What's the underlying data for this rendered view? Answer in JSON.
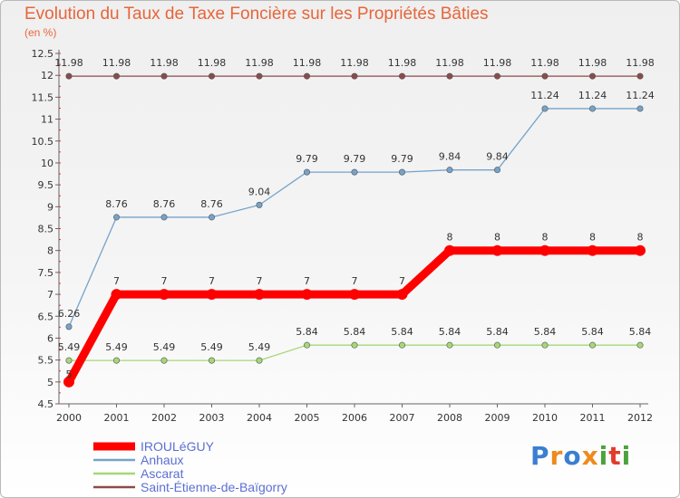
{
  "header": {
    "title": "Evolution du Taux de Taxe Foncière sur les Propriétés Bâties",
    "unit": "(en %)"
  },
  "brand": {
    "name": "Proxiti",
    "letters": [
      "P",
      "r",
      "o",
      "x",
      "i",
      "t",
      "i"
    ],
    "letter_colors": [
      "#3a7fd0",
      "#f08a1c",
      "#3a7fd0",
      "#f08a1c",
      "#4aa33c",
      "#e23b2c",
      "#4aa33c"
    ]
  },
  "chart_data": {
    "type": "line",
    "title": "Evolution du Taux de Taxe Foncière sur les Propriétés Bâties",
    "ylabel": "(en %)",
    "xlabel": "",
    "ylim": [
      4.5,
      12.5
    ],
    "yticks": [
      "12.5",
      "12",
      "11.5",
      "11",
      "10.5",
      "10",
      "9.5",
      "9",
      "8.5",
      "8",
      "7.5",
      "7",
      "6.5",
      "6",
      "5.5",
      "5",
      "4.5"
    ],
    "x": [
      "2000",
      "2001",
      "2002",
      "2003",
      "2004",
      "2005",
      "2006",
      "2007",
      "2008",
      "2009",
      "2010",
      "2011",
      "2012"
    ],
    "grid": false,
    "legend_position": "bottom-left",
    "series": [
      {
        "name": "IROULéGUY",
        "color": "#ff0000",
        "values": [
          5,
          7,
          7,
          7,
          7,
          7,
          7,
          7,
          8,
          8,
          8,
          8,
          8
        ],
        "labels": [
          "5",
          "7",
          "7",
          "7",
          "7",
          "7",
          "7",
          "7",
          "8",
          "8",
          "8",
          "8",
          "8"
        ]
      },
      {
        "name": "Anhaux",
        "color": "#75a3c9",
        "values": [
          6.26,
          8.76,
          8.76,
          8.76,
          9.04,
          9.79,
          9.79,
          9.79,
          9.84,
          9.84,
          11.24,
          11.24,
          11.24
        ],
        "labels": [
          "6.26",
          "8.76",
          "8.76",
          "8.76",
          "9.04",
          "9.79",
          "9.79",
          "9.79",
          "9.84",
          "9.84",
          "11.24",
          "11.24",
          "11.24"
        ]
      },
      {
        "name": "Ascarat",
        "color": "#a5d877",
        "values": [
          5.49,
          5.49,
          5.49,
          5.49,
          5.49,
          5.84,
          5.84,
          5.84,
          5.84,
          5.84,
          5.84,
          5.84,
          5.84
        ],
        "labels": [
          "5.49",
          "5.49",
          "5.49",
          "5.49",
          "5.49",
          "5.84",
          "5.84",
          "5.84",
          "5.84",
          "5.84",
          "5.84",
          "5.84",
          "5.84"
        ]
      },
      {
        "name": "Saint-Étienne-de-Baïgorry",
        "color": "#8c4b4b",
        "values": [
          11.98,
          11.98,
          11.98,
          11.98,
          11.98,
          11.98,
          11.98,
          11.98,
          11.98,
          11.98,
          11.98,
          11.98,
          11.98
        ],
        "labels": [
          "11.98",
          "11.98",
          "11.98",
          "11.98",
          "11.98",
          "11.98",
          "11.98",
          "11.98",
          "11.98",
          "11.98",
          "11.98",
          "11.98",
          "11.98"
        ]
      }
    ]
  }
}
